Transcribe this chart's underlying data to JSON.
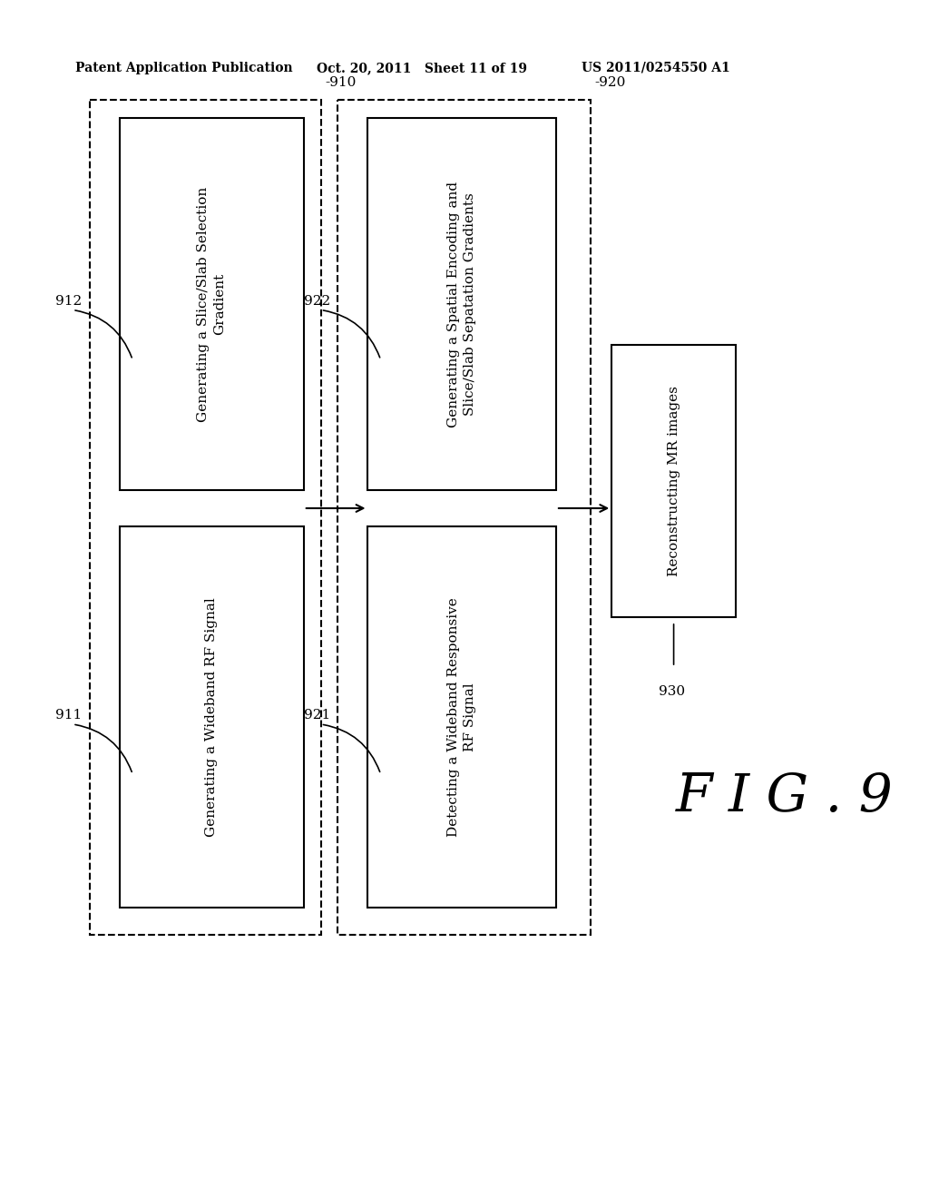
{
  "bg_color": "#ffffff",
  "header_left": "Patent Application Publication",
  "header_center": "Oct. 20, 2011   Sheet 11 of 19",
  "header_right": "US 2011/0254550 A1",
  "fig_label": "F I G . 9",
  "box910_label": "-910",
  "box920_label": "-920",
  "box912_text": "Generating a Slice/Slab Selection\nGradient",
  "box912_label": "912",
  "box911_text": "Generating a Wideband RF Signal",
  "box911_label": "911",
  "box922_text": "Generating a Spatial Encoding and\nSlice/Slab Sepatation Gradients",
  "box922_label": "922",
  "box921_text": "Detecting a Wideband Responsive\nRF Signal",
  "box921_label": "921",
  "box930_text": "Reconstructing MR images",
  "box930_label": "930"
}
